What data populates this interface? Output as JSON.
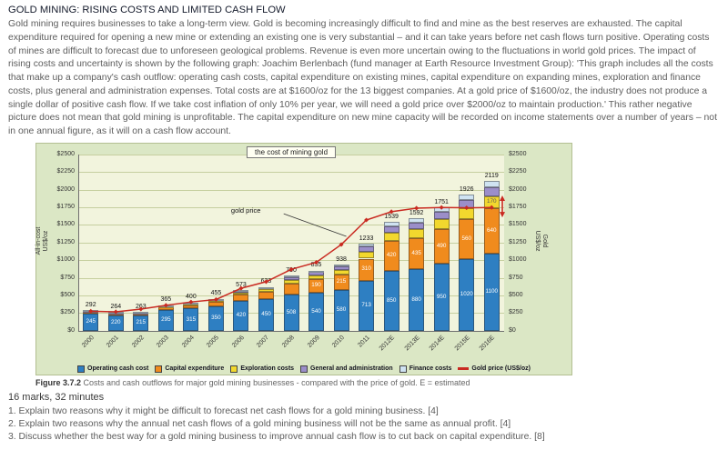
{
  "page": {
    "title": "GOLD MINING: RISING COSTS AND LIMITED CASH FLOW",
    "paragraph": "Gold mining requires businesses to take a long-term view. Gold is becoming increasingly difficult to find and mine as the best reserves are exhausted. The capital expenditure required for opening a new mine or extending an existing one is very substantial – and it can take years before net cash flows turn positive. Operating costs of mines are difficult to forecast due to unforeseen geological problems. Revenue is even more uncertain owing to the fluctuations in world gold prices. The impact of rising costs and uncertainty is shown by the following graph: Joachim Berlenbach (fund manager at Earth Resource Investment Group): 'This graph includes all the costs that make up a company's cash outflow: operating cash costs, capital expenditure on existing mines, capital expenditure on expanding mines, exploration and finance costs, plus general and administration expenses. Total costs are at $1600/oz for the 13 biggest companies. At a gold price of $1600/oz, the industry does not produce a single dollar of positive cash flow. If we take cost inflation of only 10% per year, we will need a gold price over $2000/oz to maintain production.' This rather negative picture does not mean that gold mining is unprofitable. The capital expenditure on new mine capacity will be recorded on income statements over a number of years – not in one annual figure, as it will on a cash flow account."
  },
  "figure": {
    "caption_bold": "Figure 3.7.2",
    "caption_rest": " Costs and cash outflows for major gold mining businesses - compared with the price of gold. E = estimated"
  },
  "tasks": {
    "marks": "16 marks, 32 minutes",
    "questions": [
      "1. Explain two reasons why it might be difficult to forecast net cash flows for a gold mining business. [4]",
      "2. Explain two reasons why the annual net cash flows of a gold mining business will not be the same as annual profit. [4]",
      "3. Discuss whether the best way for a gold mining business to improve annual cash flow is to cut back on capital expenditure. [8]"
    ]
  },
  "chart_data": {
    "type": "bar",
    "stacked": true,
    "title": "the cost of mining gold",
    "ylabel_left": "All-in-cost\nUS$/oz",
    "ylabel_right": "Gold\nUS$/oz",
    "ylim": [
      0,
      2500
    ],
    "ytick_step": 250,
    "ytick_prefix": "$",
    "grid": true,
    "legend_position": "bottom",
    "categories": [
      "2000",
      "2001",
      "2002",
      "2003",
      "2004",
      "2005",
      "2006",
      "2007",
      "2008",
      "2009",
      "2010",
      "2011",
      "2012E",
      "2013E",
      "2014E",
      "2015E",
      "2016E"
    ],
    "totals": [
      292,
      264,
      263,
      365,
      400,
      455,
      573,
      623,
      780,
      855,
      938,
      1233,
      1539,
      1592,
      1751,
      1926,
      2119
    ],
    "series": [
      {
        "name": "Operating cash cost",
        "color": "#2e7fc2",
        "values": [
          245,
          220,
          215,
          295,
          315,
          350,
          420,
          450,
          508,
          540,
          580,
          713,
          850,
          880,
          950,
          1020,
          1100
        ]
      },
      {
        "name": "Capital expenditure",
        "color": "#f08b1d",
        "values": [
          25,
          23,
          26,
          40,
          50,
          62,
          90,
          105,
          160,
          190,
          215,
          310,
          420,
          435,
          490,
          560,
          640
        ]
      },
      {
        "name": "Exploration costs",
        "color": "#f2d82e",
        "values": [
          10,
          9,
          10,
          14,
          16,
          20,
          28,
          30,
          48,
          55,
          62,
          95,
          120,
          125,
          140,
          155,
          170
        ]
      },
      {
        "name": "General and administration",
        "color": "#9b8ec9",
        "values": [
          8,
          8,
          8,
          11,
          13,
          16,
          24,
          26,
          42,
          46,
          52,
          75,
          95,
          98,
          110,
          120,
          130
        ]
      },
      {
        "name": "Finance costs",
        "color": "#cfe3f2",
        "values": [
          4,
          4,
          4,
          5,
          6,
          7,
          11,
          12,
          22,
          24,
          29,
          40,
          54,
          54,
          61,
          71,
          79
        ]
      }
    ],
    "line": {
      "name": "Gold price (US$/oz)",
      "color": "#c92a21",
      "values": [
        279,
        271,
        310,
        363,
        410,
        445,
        604,
        697,
        872,
        972,
        1225,
        1572,
        1690,
        1740,
        1750,
        1745,
        1750
      ]
    },
    "annotation": {
      "text": "gold price"
    }
  }
}
